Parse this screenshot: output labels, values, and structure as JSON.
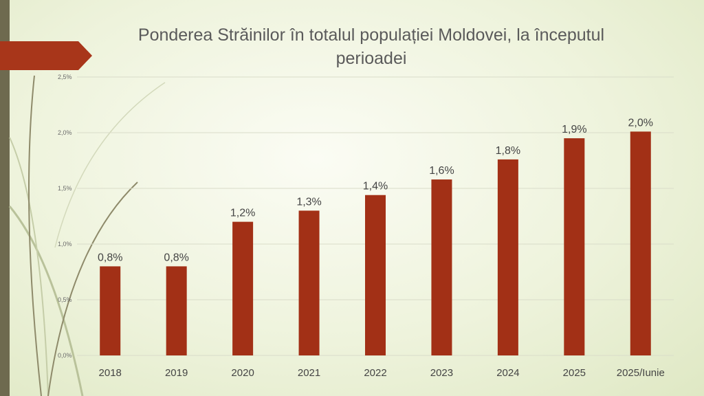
{
  "chart_data": {
    "type": "bar",
    "title": "Ponderea Străinilor în totalul populației Moldovei, la începutul perioadei",
    "categories": [
      "2018",
      "2019",
      "2020",
      "2021",
      "2022",
      "2023",
      "2024",
      "2025",
      "2025/Iunie"
    ],
    "values": [
      0.8,
      0.8,
      1.2,
      1.3,
      1.44,
      1.58,
      1.76,
      1.95,
      2.01
    ],
    "data_labels": [
      "0,8%",
      "0,8%",
      "1,2%",
      "1,3%",
      "1,4%",
      "1,6%",
      "1,8%",
      "1,9%",
      "2,0%"
    ],
    "ylim": [
      0,
      2.5
    ],
    "yticks": [
      0,
      0.5,
      1.0,
      1.5,
      2.0,
      2.5
    ],
    "ytick_labels": [
      "0,0%",
      "0,5%",
      "1,0%",
      "1,5%",
      "2,0%",
      "2,5%"
    ],
    "xlabel": "",
    "ylabel": "",
    "grid": true,
    "bar_color": "#a23016"
  }
}
